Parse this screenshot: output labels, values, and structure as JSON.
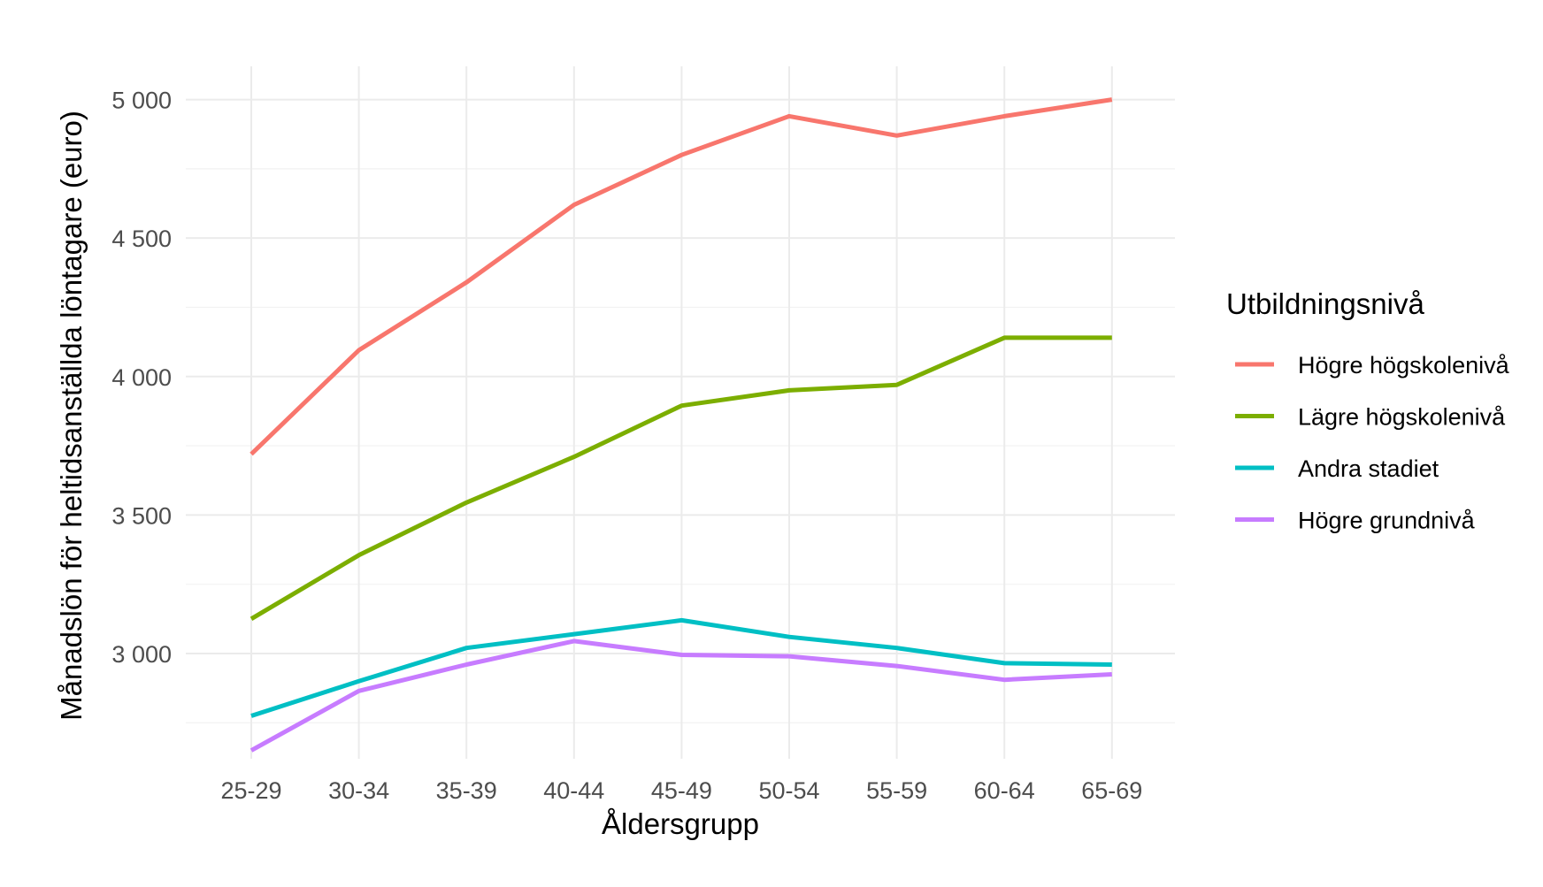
{
  "chart_data": {
    "type": "line",
    "title": "",
    "xlabel": "Åldersgrupp",
    "ylabel": "Månadslön för heltidsanställda löntagare (euro)",
    "categories": [
      "25-29",
      "30-34",
      "35-39",
      "40-44",
      "45-49",
      "50-54",
      "55-59",
      "60-64",
      "65-69"
    ],
    "ylim": [
      2620,
      5120
    ],
    "yticks": [
      3000,
      3500,
      4000,
      4500,
      5000
    ],
    "ytick_labels": [
      "3 000",
      "3 500",
      "4 000",
      "4 500",
      "5 000"
    ],
    "grid": true,
    "legend": {
      "title": "Utbildningsnivå",
      "position": "right"
    },
    "series": [
      {
        "name": "Högre högskolenivå",
        "color": "#F8766D",
        "values": [
          3720,
          4095,
          4340,
          4620,
          4800,
          4940,
          4870,
          4940,
          5000
        ]
      },
      {
        "name": "Lägre högskolenivå",
        "color": "#7CAE00",
        "values": [
          3125,
          3355,
          3545,
          3710,
          3895,
          3950,
          3970,
          4140,
          4140
        ]
      },
      {
        "name": "Andra stadiet",
        "color": "#00BFC4",
        "values": [
          2775,
          2900,
          3020,
          3070,
          3120,
          3060,
          3020,
          2965,
          2960
        ]
      },
      {
        "name": "Högre grundnivå",
        "color": "#C77CFF",
        "values": [
          2650,
          2865,
          2960,
          3045,
          2995,
          2990,
          2955,
          2905,
          2925
        ]
      }
    ]
  }
}
